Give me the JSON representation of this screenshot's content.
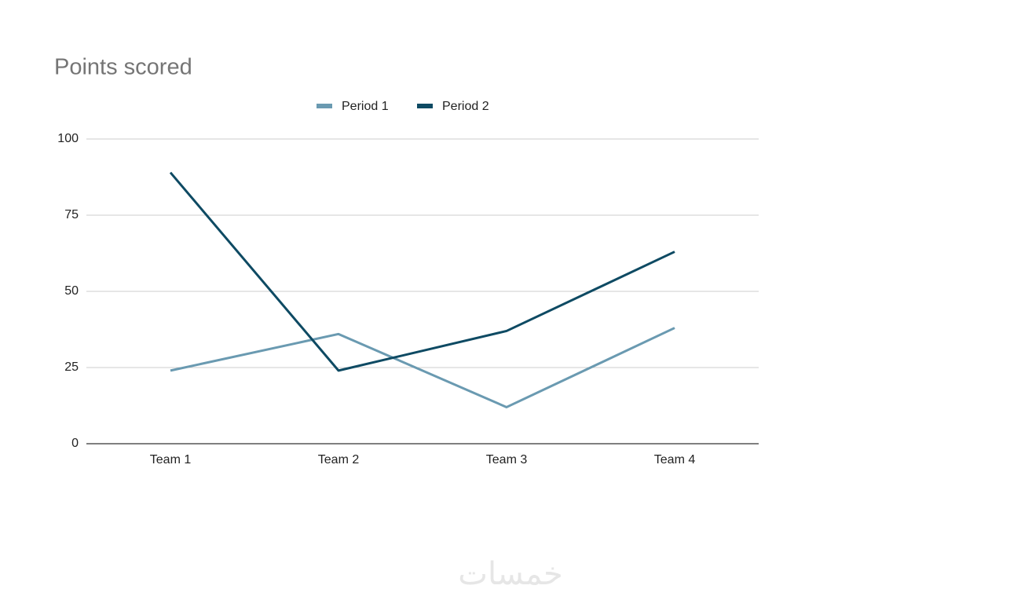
{
  "chart_data": {
    "type": "line",
    "title": "Points scored",
    "categories": [
      "Team 1",
      "Team 2",
      "Team 3",
      "Team 4"
    ],
    "series": [
      {
        "name": "Period 1",
        "color": "#6a9ab1",
        "values": [
          24,
          36,
          12,
          38
        ]
      },
      {
        "name": "Period 2",
        "color": "#0e4a63",
        "values": [
          89,
          24,
          37,
          63
        ]
      }
    ],
    "ylim": [
      0,
      100
    ],
    "yticks": [
      0,
      25,
      50,
      75,
      100
    ],
    "grid": true,
    "legend": "top"
  },
  "watermark": "خمسات"
}
